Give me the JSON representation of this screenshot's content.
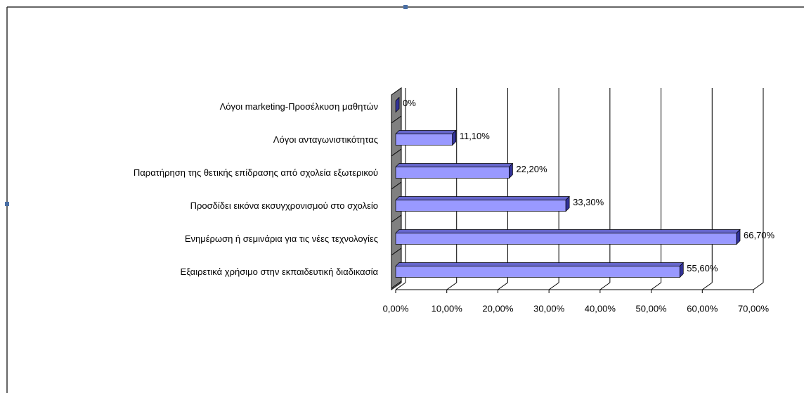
{
  "chart_data": {
    "type": "bar3d_horizontal",
    "categories": [
      "Λόγοι marketing-Προσέλκυση μαθητών",
      "Λόγοι ανταγωνιστικότητας",
      "Παρατήρηση της θετικής επίδρασης από σχολεία εξωτερικού",
      "Προσδίδει εικόνα εκσυγχρονισμού στο σχολείο",
      "Ενημέρωση ή σεμινάρια για τις νέες τεχνολογίες",
      "Εξαιρετικά χρήσιμο στην εκπαιδευτική διαδικασία"
    ],
    "values": [
      0,
      11.1,
      22.2,
      33.3,
      66.7,
      55.6
    ],
    "value_labels": [
      "0%",
      "11,10%",
      "22,20%",
      "33,30%",
      "66,70%",
      "55,60%"
    ],
    "color": "#9999ff",
    "xlim": [
      0,
      70
    ],
    "xticks": [
      {
        "value": 0,
        "label": "0,00%"
      },
      {
        "value": 10,
        "label": "10,00%"
      },
      {
        "value": 20,
        "label": "20,00%"
      },
      {
        "value": 30,
        "label": "30,00%"
      },
      {
        "value": 40,
        "label": "40,00%"
      },
      {
        "value": 50,
        "label": "50,00%"
      },
      {
        "value": 60,
        "label": "60,00%"
      },
      {
        "value": 70,
        "label": "70,00%"
      }
    ],
    "grid": true
  }
}
